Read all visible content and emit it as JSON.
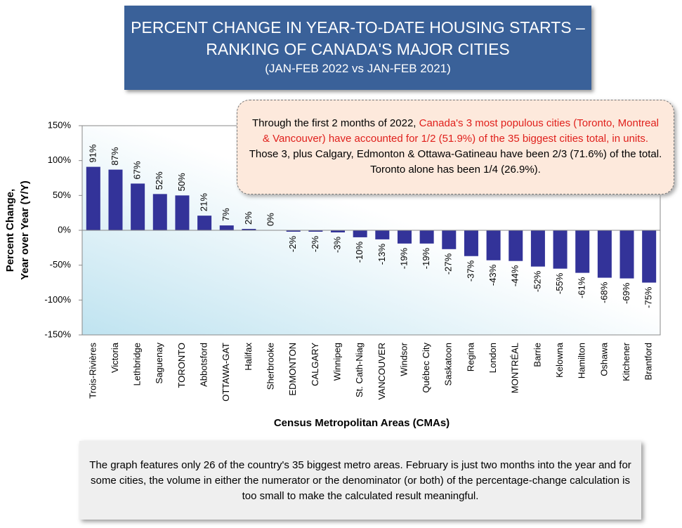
{
  "chart_data": {
    "type": "bar",
    "title": [
      "PERCENT CHANGE IN YEAR-TO-DATE HOUSING STARTS –",
      "RANKING OF CANADA'S MAJOR CITIES"
    ],
    "subtitle": "(JAN-FEB 2022 vs JAN-FEB 2021)",
    "annotation": {
      "before": "Through the first 2 months of 2022, ",
      "highlight": "Canada's 3 most populous cities (Toronto, Montreal & Vancouver) have accounted for 1/2 (51.9%) of the 35 biggest cities total, in units.",
      "after": " Those 3, plus Calgary, Edmonton & Ottawa-Gatineau have been 2/3 (71.6%) of the total. Toronto alone has been 1/4 (26.9%)."
    },
    "footnote": "The graph features only 26 of the country's 35 biggest metro areas. February is just two months into the year and for some cities, the volume in either the numerator or the denominator (or both)  of the percentage-change calculation is too small to make the calculated result meaningful.",
    "y_label": [
      "Percent Change,",
      "Year over Year (Y/Y)"
    ],
    "x_label": "Census Metropolitan Areas (CMAs)",
    "categories": [
      "Trois-Rivières",
      "Victoria",
      "Lethbridge",
      "Saguenay",
      "TORONTO",
      "Abbotsford",
      "OTTAWA-GAT",
      "Halifax",
      "Sherbrooke",
      "EDMONTON",
      "CALGARY",
      "Winnipeg",
      "St. Cath-Niag",
      "VANCOUVER",
      "Windsor",
      "Québec City",
      "Saskatoon",
      "Regina",
      "London",
      "MONTRÉAL",
      "Barrie",
      "Kelowna",
      "Hamilton",
      "Oshawa",
      "Kitchener",
      "Brantford"
    ],
    "values": [
      91,
      87,
      67,
      52,
      50,
      21,
      7,
      2,
      0,
      -2,
      -2,
      -3,
      -10,
      -13,
      -19,
      -19,
      -27,
      -37,
      -43,
      -44,
      -52,
      -55,
      -61,
      -68,
      -69,
      -75
    ],
    "value_labels": [
      "91%",
      "87%",
      "67%",
      "52%",
      "50%",
      "21%",
      "7%",
      "2%",
      "0%",
      "-2%",
      "-2%",
      "-3%",
      "-10%",
      "-13%",
      "-19%",
      "-19%",
      "-27%",
      "-37%",
      "-43%",
      "-44%",
      "-52%",
      "-55%",
      "-61%",
      "-68%",
      "-69%",
      "-75%"
    ],
    "color": "#333399",
    "ylim": [
      -150,
      150
    ],
    "yticks": [
      {
        "value": -150,
        "label": "-150%"
      },
      {
        "value": -100,
        "label": "-100%"
      },
      {
        "value": -50,
        "label": "-50%"
      },
      {
        "value": 0,
        "label": "0%"
      },
      {
        "value": 50,
        "label": "50%"
      },
      {
        "value": 100,
        "label": "100%"
      },
      {
        "value": 150,
        "label": "150%"
      }
    ]
  }
}
